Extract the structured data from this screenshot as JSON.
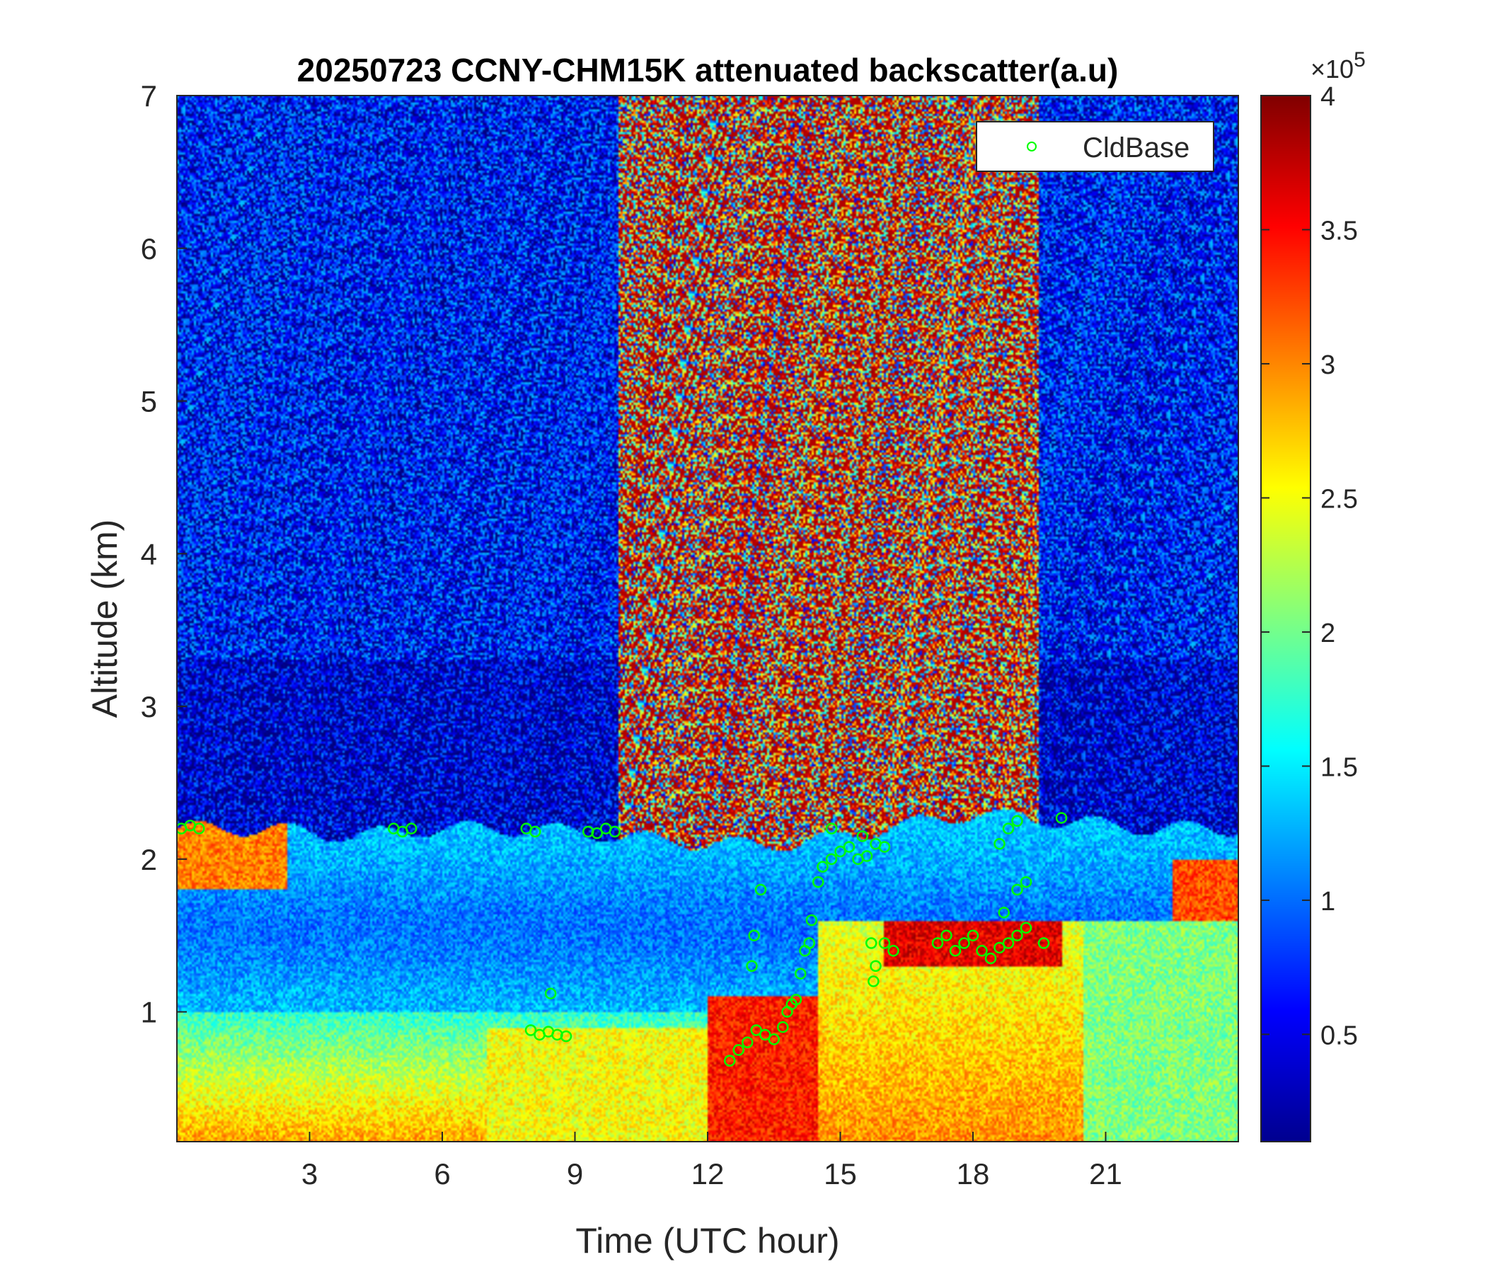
{
  "chart_data": {
    "type": "heatmap",
    "title": "20250723 CCNY-CHM15K attenuated backscatter(a.u)",
    "xlabel": "Time (UTC hour)",
    "ylabel": "Altitude (km)",
    "xlim": [
      0,
      24
    ],
    "ylim": [
      0.15,
      7
    ],
    "xticks": [
      3,
      6,
      9,
      12,
      15,
      18,
      21
    ],
    "yticks": [
      1,
      2,
      3,
      4,
      5,
      6,
      7
    ],
    "colorbar": {
      "colormap": "jet",
      "range": [
        0.1,
        4
      ],
      "ticks": [
        0.5,
        1,
        1.5,
        2,
        2.5,
        3,
        3.5,
        4
      ],
      "tick_labels": [
        "0.5",
        "1",
        "1.5",
        "2",
        "2.5",
        "3",
        "3.5",
        "4"
      ],
      "exponent_label": "×10",
      "exponent": "5"
    },
    "legend": {
      "position": "top-right",
      "entries": [
        {
          "name": "CldBase",
          "marker": "circle",
          "color": "#00ff00"
        }
      ]
    },
    "grid": false,
    "profile_summary": {
      "boundary_layer_top_km": [
        [
          0,
          2.2
        ],
        [
          2,
          2.2
        ],
        [
          4,
          2.15
        ],
        [
          6,
          2.2
        ],
        [
          8,
          2.2
        ],
        [
          10,
          2.15
        ],
        [
          12,
          2.1
        ],
        [
          14,
          2.1
        ],
        [
          16,
          2.2
        ],
        [
          18,
          2.3
        ],
        [
          20,
          2.25
        ],
        [
          22,
          2.2
        ],
        [
          24,
          2.2
        ]
      ],
      "free_troposphere_high_noise_hours": [
        10,
        19.5
      ]
    },
    "cloud_base": [
      {
        "t": 0.1,
        "z": 2.2
      },
      {
        "t": 0.3,
        "z": 2.22
      },
      {
        "t": 0.5,
        "z": 2.2
      },
      {
        "t": 4.9,
        "z": 2.2
      },
      {
        "t": 5.1,
        "z": 2.18
      },
      {
        "t": 5.3,
        "z": 2.2
      },
      {
        "t": 7.9,
        "z": 2.2
      },
      {
        "t": 8.1,
        "z": 2.18
      },
      {
        "t": 8.0,
        "z": 0.88
      },
      {
        "t": 8.2,
        "z": 0.85
      },
      {
        "t": 8.4,
        "z": 0.87
      },
      {
        "t": 8.6,
        "z": 0.85
      },
      {
        "t": 8.8,
        "z": 0.84
      },
      {
        "t": 8.45,
        "z": 1.12
      },
      {
        "t": 9.3,
        "z": 2.18
      },
      {
        "t": 9.5,
        "z": 2.17
      },
      {
        "t": 9.7,
        "z": 2.2
      },
      {
        "t": 9.9,
        "z": 2.18
      },
      {
        "t": 12.5,
        "z": 0.68
      },
      {
        "t": 12.7,
        "z": 0.75
      },
      {
        "t": 12.9,
        "z": 0.8
      },
      {
        "t": 13.1,
        "z": 0.88
      },
      {
        "t": 13.3,
        "z": 0.85
      },
      {
        "t": 13.5,
        "z": 0.82
      },
      {
        "t": 13.7,
        "z": 0.9
      },
      {
        "t": 13.8,
        "z": 1.0
      },
      {
        "t": 13.9,
        "z": 1.05
      },
      {
        "t": 14.0,
        "z": 1.08
      },
      {
        "t": 13.0,
        "z": 1.3
      },
      {
        "t": 13.05,
        "z": 1.5
      },
      {
        "t": 13.2,
        "z": 1.8
      },
      {
        "t": 14.1,
        "z": 1.25
      },
      {
        "t": 14.2,
        "z": 1.4
      },
      {
        "t": 14.3,
        "z": 1.45
      },
      {
        "t": 14.35,
        "z": 1.6
      },
      {
        "t": 14.5,
        "z": 1.85
      },
      {
        "t": 14.6,
        "z": 1.95
      },
      {
        "t": 14.8,
        "z": 2.0
      },
      {
        "t": 15.0,
        "z": 2.05
      },
      {
        "t": 15.2,
        "z": 2.08
      },
      {
        "t": 15.4,
        "z": 2.0
      },
      {
        "t": 15.6,
        "z": 2.02
      },
      {
        "t": 15.8,
        "z": 2.1
      },
      {
        "t": 16.0,
        "z": 2.08
      },
      {
        "t": 14.8,
        "z": 2.2
      },
      {
        "t": 15.5,
        "z": 2.15
      },
      {
        "t": 15.7,
        "z": 1.45
      },
      {
        "t": 15.8,
        "z": 1.3
      },
      {
        "t": 15.75,
        "z": 1.2
      },
      {
        "t": 16.0,
        "z": 1.45
      },
      {
        "t": 16.2,
        "z": 1.4
      },
      {
        "t": 17.2,
        "z": 1.45
      },
      {
        "t": 17.4,
        "z": 1.5
      },
      {
        "t": 17.6,
        "z": 1.4
      },
      {
        "t": 17.8,
        "z": 1.45
      },
      {
        "t": 18.0,
        "z": 1.5
      },
      {
        "t": 18.2,
        "z": 1.4
      },
      {
        "t": 18.4,
        "z": 1.35
      },
      {
        "t": 18.6,
        "z": 1.42
      },
      {
        "t": 18.8,
        "z": 1.45
      },
      {
        "t": 19.0,
        "z": 1.5
      },
      {
        "t": 19.2,
        "z": 1.55
      },
      {
        "t": 18.6,
        "z": 2.1
      },
      {
        "t": 18.8,
        "z": 2.2
      },
      {
        "t": 19.0,
        "z": 2.25
      },
      {
        "t": 18.7,
        "z": 1.65
      },
      {
        "t": 19.0,
        "z": 1.8
      },
      {
        "t": 19.2,
        "z": 1.85
      },
      {
        "t": 19.6,
        "z": 1.45
      },
      {
        "t": 20.0,
        "z": 2.27
      }
    ]
  }
}
